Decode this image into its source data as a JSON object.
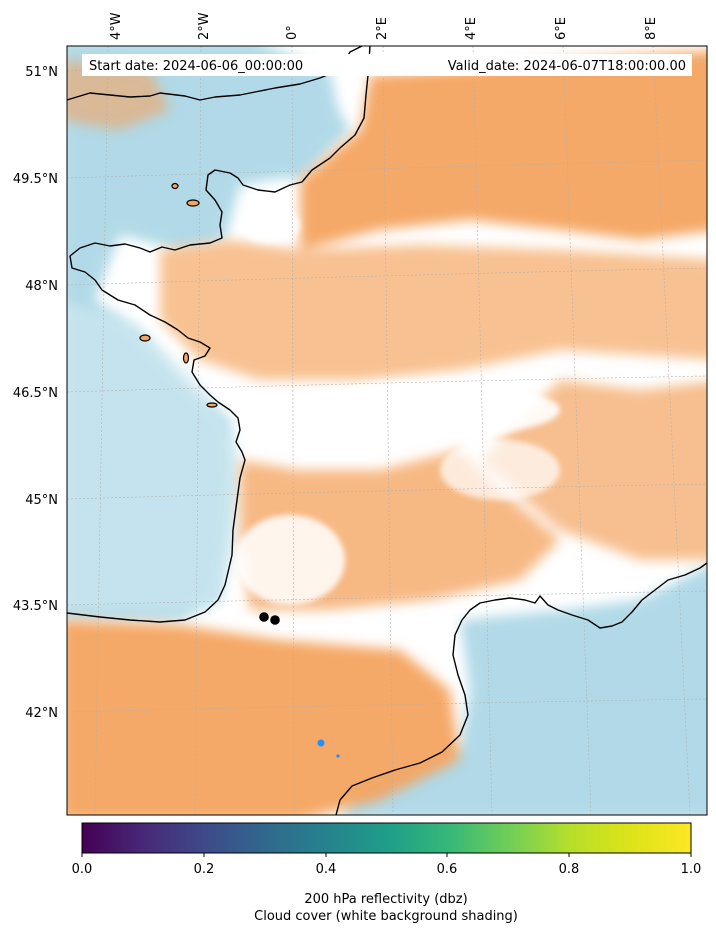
{
  "map": {
    "header": {
      "start_label": "Start date: 2024-06-06_00:00:00",
      "valid_label": "Valid_date: 2024-06-07T18:00:00.00"
    },
    "lon_labels": [
      "4°W",
      "2°W",
      "0°",
      "2°E",
      "4°E",
      "6°E",
      "8°E"
    ],
    "lat_labels": [
      "51°N",
      "49.5°N",
      "48°N",
      "46.5°N",
      "45°N",
      "43.5°N",
      "42°N"
    ],
    "colors": {
      "sea_cloud": "#add8e6",
      "land_cloud": "#f4a460",
      "coastline": "#000000",
      "gridline": "#b0b0b0",
      "marker_black": "#000000",
      "marker_blue": "#1e90ff"
    }
  },
  "colorbar": {
    "colormap": "viridis",
    "ticks": [
      "0.0",
      "0.2",
      "0.4",
      "0.6",
      "0.8",
      "1.0"
    ],
    "label_line1": "200 hPa reflectivity (dbz)",
    "label_line2": "Cloud cover (white background shading)"
  }
}
